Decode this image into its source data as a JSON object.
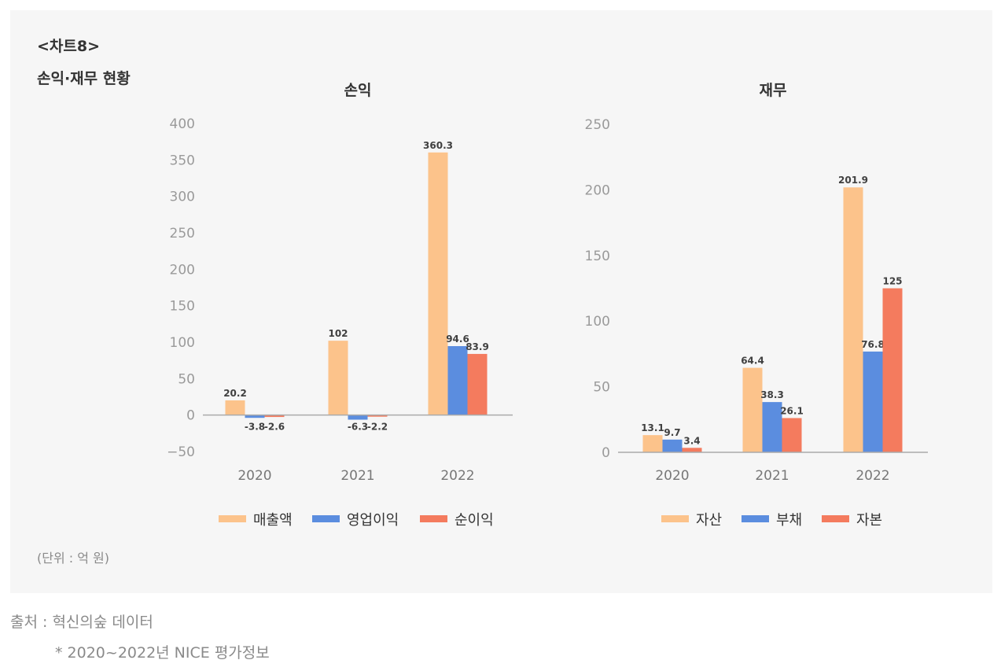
{
  "header": {
    "chart_label": "<차트8>",
    "title": "손익·재무 현황"
  },
  "unit_note": "(단위 : 억 원)",
  "source": "출처 : 혁신의숲 데이터",
  "footnote": "* 2020~2022년 NICE 평가정보",
  "colors": {
    "series1": "#fcc38b",
    "series2": "#5b8ddf",
    "series3": "#f47b5e",
    "axis_text": "#9a9a9a",
    "label_text": "#404040"
  },
  "chart_data": [
    {
      "type": "bar",
      "title": "손익",
      "categories": [
        "2020",
        "2021",
        "2022"
      ],
      "series": [
        {
          "name": "매출액",
          "values": [
            20.2,
            102,
            360.3
          ]
        },
        {
          "name": "영업이익",
          "values": [
            -3.8,
            -6.3,
            94.6
          ]
        },
        {
          "name": "순이익",
          "values": [
            -2.6,
            -2.2,
            83.9
          ]
        }
      ],
      "data_labels": [
        [
          "20.2",
          "102",
          "360.3"
        ],
        [
          "-3.8",
          "-6.3",
          "94.6"
        ],
        [
          "-2.6",
          "-2.2",
          "83.9"
        ]
      ],
      "ylim": [
        -50,
        400
      ],
      "yticks": [
        -50,
        0,
        50,
        100,
        150,
        200,
        250,
        300,
        350,
        400
      ],
      "ytick_labels": [
        "−50",
        "0",
        "50",
        "100",
        "150",
        "200",
        "250",
        "300",
        "350",
        "400"
      ],
      "grid": false,
      "legend": "bottom"
    },
    {
      "type": "bar",
      "title": "재무",
      "categories": [
        "2020",
        "2021",
        "2022"
      ],
      "series": [
        {
          "name": "자산",
          "values": [
            13.1,
            64.4,
            201.9
          ]
        },
        {
          "name": "부채",
          "values": [
            9.7,
            38.3,
            76.8
          ]
        },
        {
          "name": "자본",
          "values": [
            3.4,
            26.1,
            125
          ]
        }
      ],
      "data_labels": [
        [
          "13.1",
          "64.4",
          "201.9"
        ],
        [
          "9.7",
          "38.3",
          "76.8"
        ],
        [
          "3.4",
          "26.1",
          "125"
        ]
      ],
      "ylim": [
        0,
        250
      ],
      "yticks": [
        0,
        50,
        100,
        150,
        200,
        250
      ],
      "ytick_labels": [
        "0",
        "50",
        "100",
        "150",
        "200",
        "250"
      ],
      "grid": false,
      "legend": "bottom"
    }
  ]
}
